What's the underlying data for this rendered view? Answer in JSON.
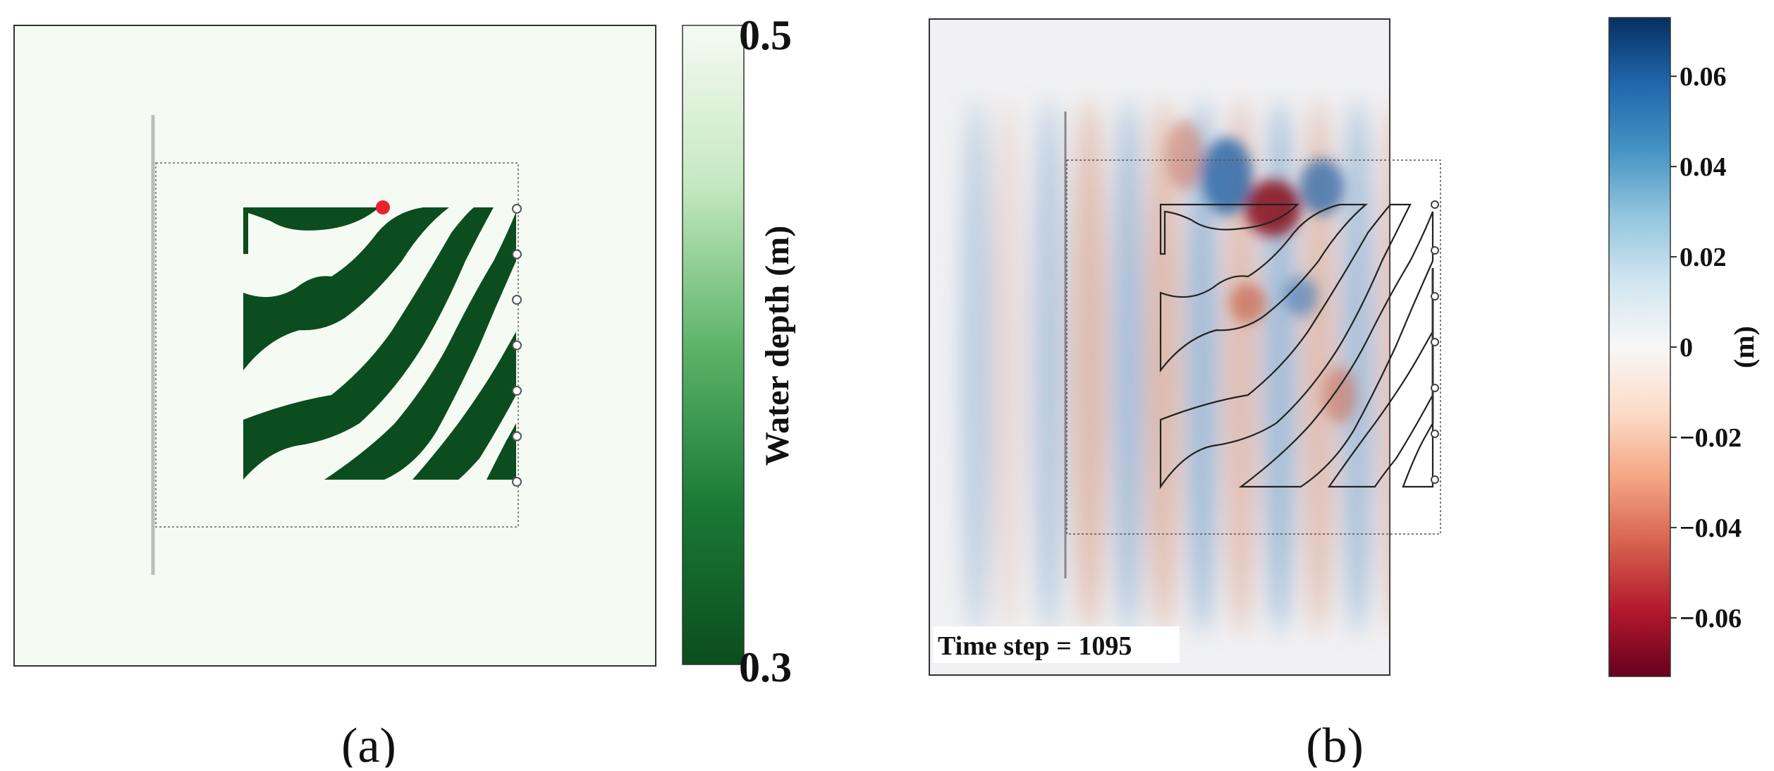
{
  "chart_data": [
    {
      "type": "heatmap",
      "panel_label": "(a)",
      "title": "",
      "colorbar": {
        "label": "Water depth (m)",
        "ticks": [
          "0.5",
          "0.3"
        ],
        "range": [
          0.3,
          0.5
        ],
        "colors": [
          "#0b4d1e",
          "#1b7a35",
          "#5db56a",
          "#c5e8c0",
          "#f5fbf3"
        ]
      },
      "background_color": "#f5fbf3",
      "band_color": "#0b4d1e",
      "marker_color": "#e8232f"
    },
    {
      "type": "heatmap",
      "panel_label": "(b)",
      "title": "",
      "annotation": "Time step = 1095",
      "colorbar": {
        "label": "(m)",
        "ticks": [
          "0.06",
          "0.04",
          "0.02",
          "0",
          "−0.02",
          "−0.04",
          "−0.06"
        ],
        "tick_values": [
          0.06,
          0.04,
          0.02,
          0,
          -0.02,
          -0.04,
          -0.06
        ],
        "range": [
          -0.073,
          0.073
        ],
        "colors": [
          "#67001f",
          "#b2182b",
          "#d6604d",
          "#f4a582",
          "#fddbc7",
          "#f7f7f7",
          "#d1e5f0",
          "#92c5de",
          "#4393c3",
          "#2166ac",
          "#053061"
        ]
      }
    }
  ]
}
